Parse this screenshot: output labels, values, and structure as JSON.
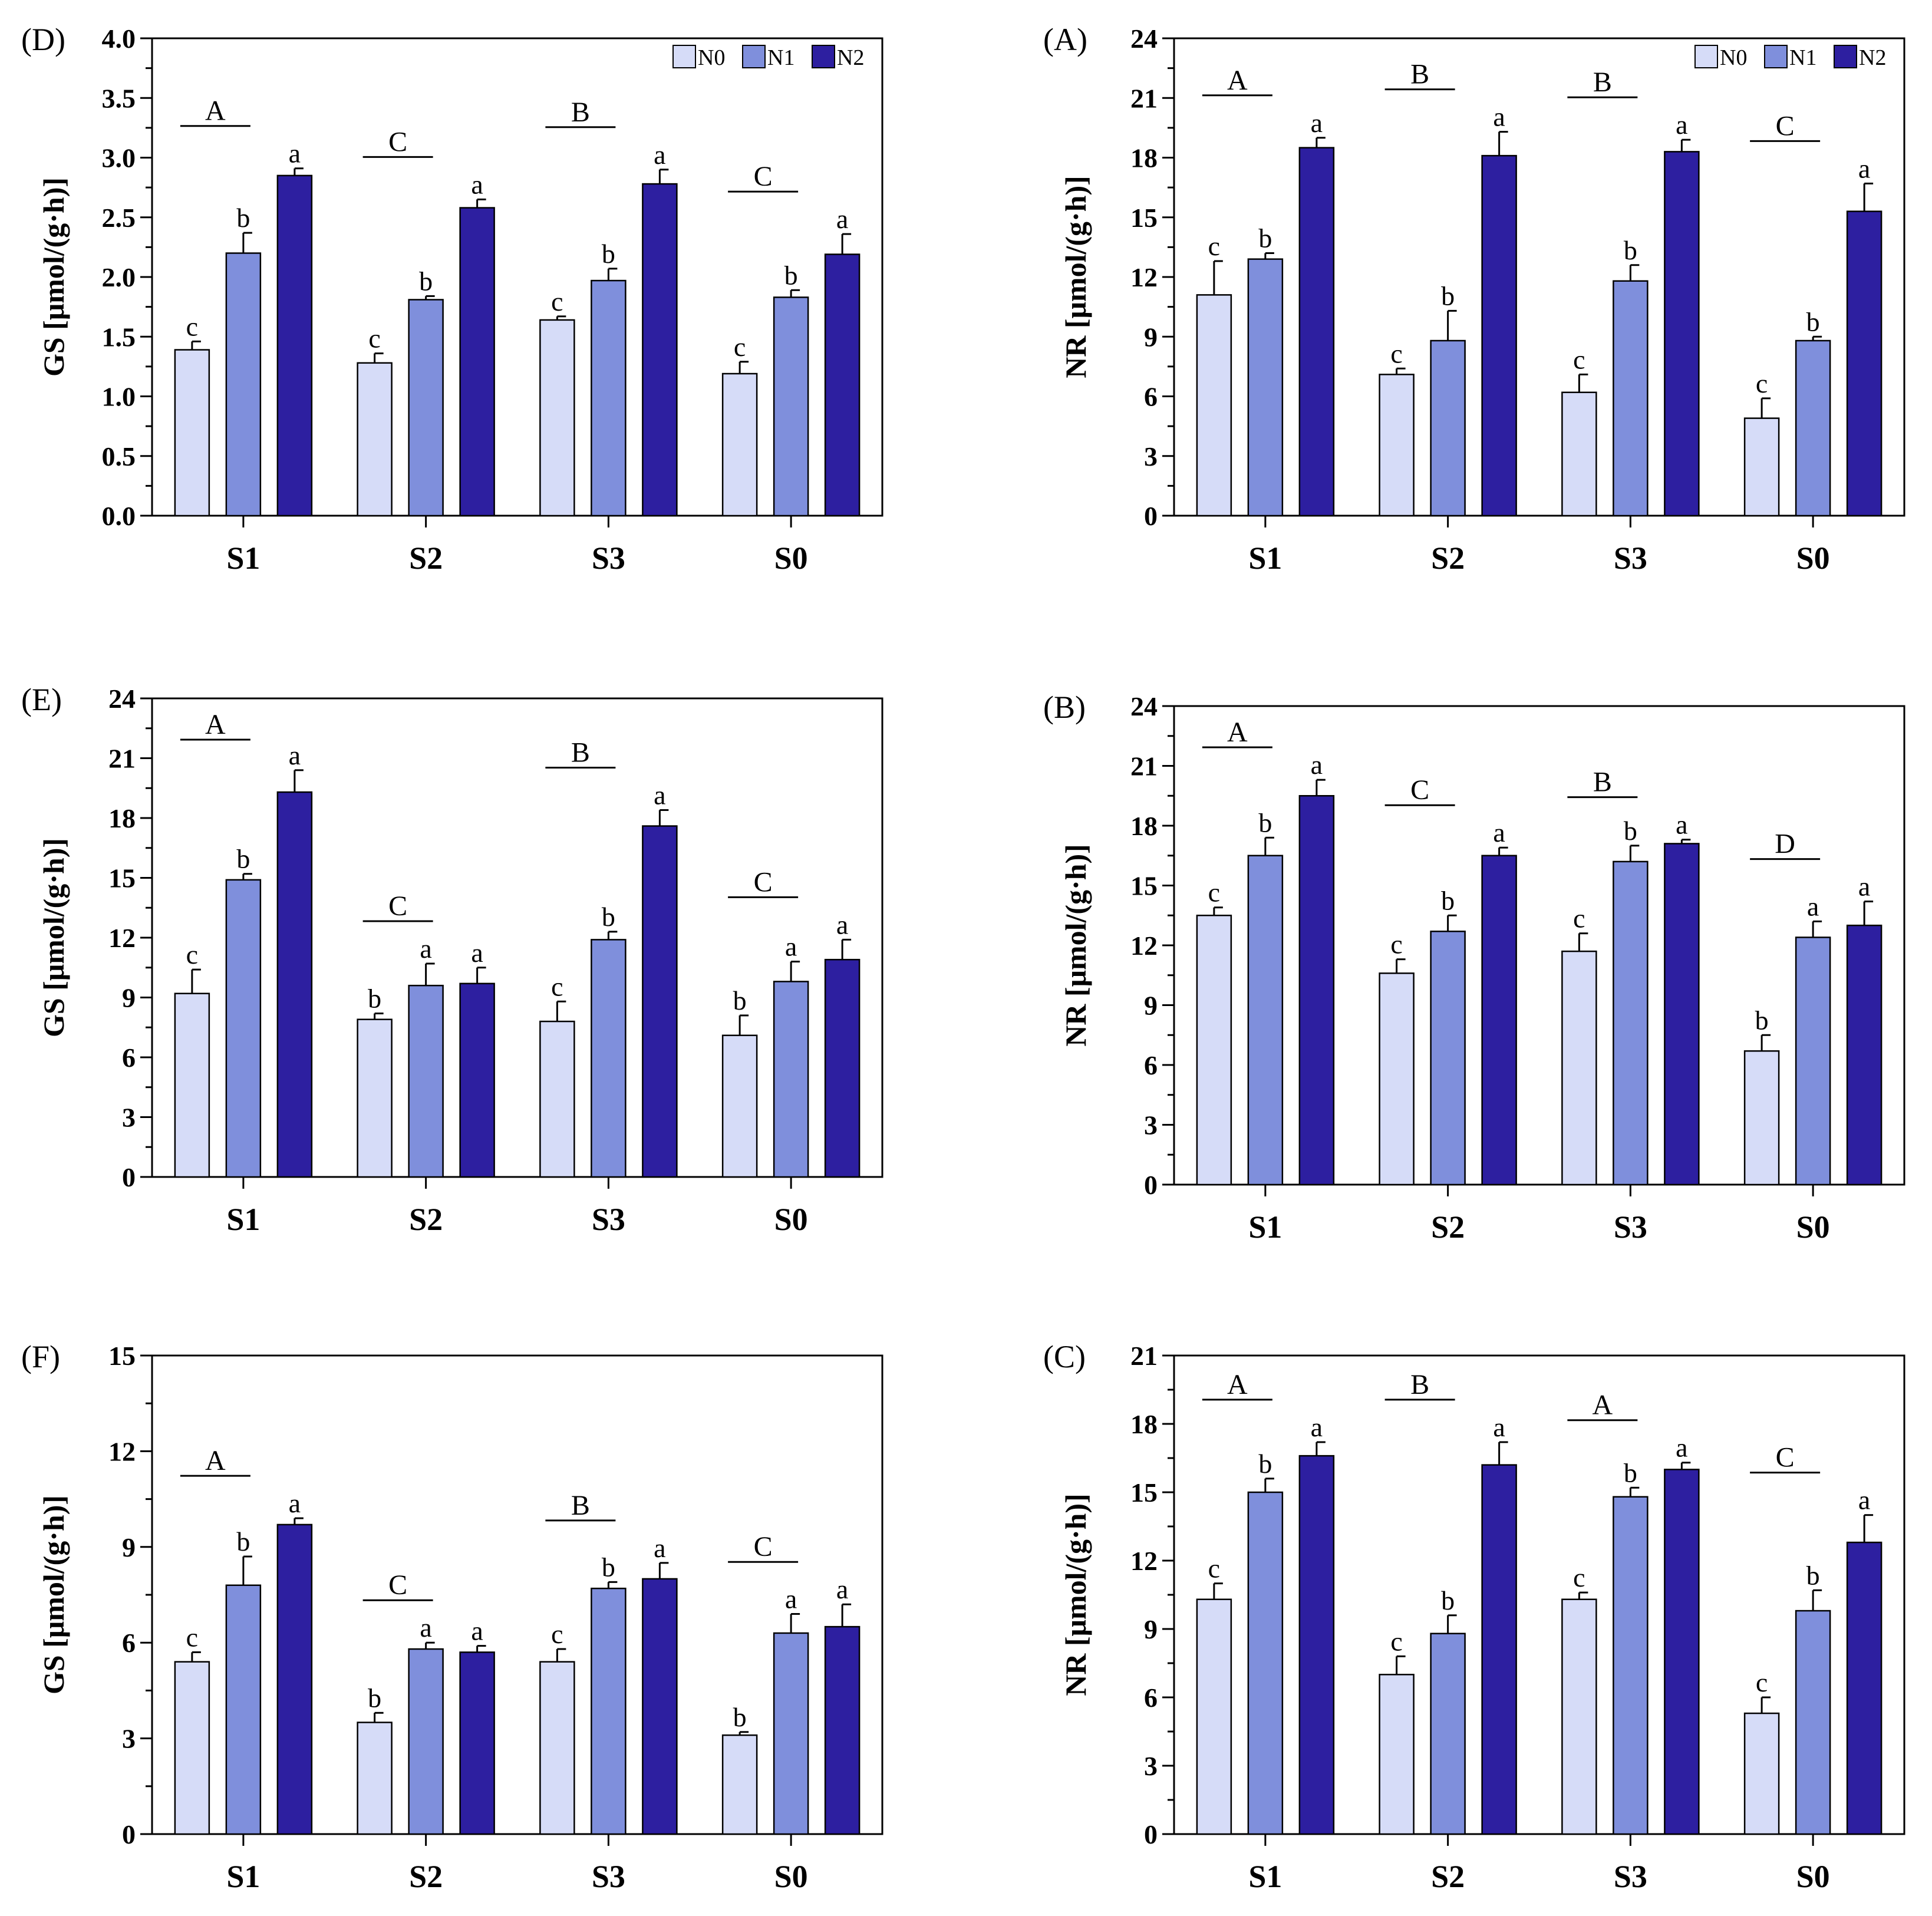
{
  "legend": {
    "entries": [
      "N0",
      "N1",
      "N2"
    ],
    "colors": [
      "#d6dcf8",
      "#7f8fdc",
      "#2d1fa0"
    ]
  },
  "chart_data": [
    {
      "panel": "(D)",
      "type": "bar",
      "ylabel": "GS [μmol/(g·h)]",
      "ylim": [
        0,
        4.0
      ],
      "yticks": [
        "0.0",
        "0.5",
        "1.0",
        "1.5",
        "2.0",
        "2.5",
        "3.0",
        "3.5",
        "4.0"
      ],
      "categories": [
        "S1",
        "S2",
        "S3",
        "S0"
      ],
      "legend": "top-right",
      "series": [
        {
          "name": "N0",
          "values": [
            1.39,
            1.28,
            1.64,
            1.19
          ],
          "errors": [
            0.07,
            0.08,
            0.03,
            0.1
          ],
          "letters": [
            "c",
            "c",
            "c",
            "c"
          ]
        },
        {
          "name": "N1",
          "values": [
            2.2,
            1.81,
            1.97,
            1.83
          ],
          "errors": [
            0.17,
            0.03,
            0.1,
            0.06
          ],
          "letters": [
            "b",
            "b",
            "b",
            "b"
          ]
        },
        {
          "name": "N2",
          "values": [
            2.85,
            2.58,
            2.78,
            2.19
          ],
          "errors": [
            0.06,
            0.07,
            0.12,
            0.17
          ],
          "letters": [
            "a",
            "a",
            "a",
            "a"
          ]
        }
      ],
      "group_letters": [
        "A",
        "C",
        "B",
        "C"
      ]
    },
    {
      "panel": "(A)",
      "type": "bar",
      "ylabel": "NR [μmol/(g·h)]",
      "ylim": [
        0,
        24
      ],
      "yticks": [
        "0",
        "3",
        "6",
        "9",
        "12",
        "15",
        "18",
        "21",
        "24"
      ],
      "categories": [
        "S1",
        "S2",
        "S3",
        "S0"
      ],
      "legend": "top-right",
      "series": [
        {
          "name": "N0",
          "values": [
            11.1,
            7.1,
            6.2,
            4.9
          ],
          "errors": [
            1.7,
            0.3,
            0.9,
            1.0
          ],
          "letters": [
            "c",
            "c",
            "c",
            "c"
          ]
        },
        {
          "name": "N1",
          "values": [
            12.9,
            8.8,
            11.8,
            8.8
          ],
          "errors": [
            0.3,
            1.5,
            0.8,
            0.2
          ],
          "letters": [
            "b",
            "b",
            "b",
            "b"
          ]
        },
        {
          "name": "N2",
          "values": [
            18.5,
            18.1,
            18.3,
            15.3
          ],
          "errors": [
            0.5,
            1.2,
            0.6,
            1.4
          ],
          "letters": [
            "a",
            "a",
            "a",
            "a"
          ]
        }
      ],
      "group_letters": [
        "A",
        "B",
        "B",
        "C"
      ]
    },
    {
      "panel": "(E)",
      "type": "bar",
      "ylabel": "GS [μmol/(g·h)]",
      "ylim": [
        0,
        24
      ],
      "yticks": [
        "0",
        "3",
        "6",
        "9",
        "12",
        "15",
        "18",
        "21",
        "24"
      ],
      "categories": [
        "S1",
        "S2",
        "S3",
        "S0"
      ],
      "series": [
        {
          "name": "N0",
          "values": [
            9.2,
            7.9,
            7.8,
            7.1
          ],
          "errors": [
            1.2,
            0.3,
            1.0,
            1.0
          ],
          "letters": [
            "c",
            "b",
            "c",
            "b"
          ]
        },
        {
          "name": "N1",
          "values": [
            14.9,
            9.6,
            11.9,
            9.8
          ],
          "errors": [
            0.3,
            1.1,
            0.4,
            1.0
          ],
          "letters": [
            "b",
            "a",
            "b",
            "a"
          ]
        },
        {
          "name": "N2",
          "values": [
            19.3,
            9.7,
            17.6,
            10.9
          ],
          "errors": [
            1.1,
            0.8,
            0.8,
            1.0
          ],
          "letters": [
            "a",
            "a",
            "a",
            "a"
          ]
        }
      ],
      "group_letters": [
        "A",
        "C",
        "B",
        "C"
      ]
    },
    {
      "panel": "(B)",
      "type": "bar",
      "ylabel": "NR [μmol/(g·h)]",
      "ylim": [
        0,
        24
      ],
      "yticks": [
        "0",
        "3",
        "6",
        "9",
        "12",
        "15",
        "18",
        "21",
        "24"
      ],
      "categories": [
        "S1",
        "S2",
        "S3",
        "S0"
      ],
      "series": [
        {
          "name": "N0",
          "values": [
            13.5,
            10.6,
            11.7,
            6.7
          ],
          "errors": [
            0.4,
            0.7,
            0.9,
            0.8
          ],
          "letters": [
            "c",
            "c",
            "c",
            "b"
          ]
        },
        {
          "name": "N1",
          "values": [
            16.5,
            12.7,
            16.2,
            12.4
          ],
          "errors": [
            0.9,
            0.8,
            0.8,
            0.8
          ],
          "letters": [
            "b",
            "b",
            "b",
            "a"
          ]
        },
        {
          "name": "N2",
          "values": [
            19.5,
            16.5,
            17.1,
            13.0
          ],
          "errors": [
            0.8,
            0.4,
            0.2,
            1.2
          ],
          "letters": [
            "a",
            "a",
            "a",
            "a"
          ]
        }
      ],
      "group_letters": [
        "A",
        "C",
        "B",
        "D"
      ]
    },
    {
      "panel": "(F)",
      "type": "bar",
      "ylabel": "GS [μmol/(g·h)]",
      "ylim": [
        0,
        15
      ],
      "yticks": [
        "0",
        "3",
        "6",
        "9",
        "12",
        "15"
      ],
      "categories": [
        "S1",
        "S2",
        "S3",
        "S0"
      ],
      "series": [
        {
          "name": "N0",
          "values": [
            5.4,
            3.5,
            5.4,
            3.1
          ],
          "errors": [
            0.3,
            0.3,
            0.4,
            0.1
          ],
          "letters": [
            "c",
            "b",
            "c",
            "b"
          ]
        },
        {
          "name": "N1",
          "values": [
            7.8,
            5.8,
            7.7,
            6.3
          ],
          "errors": [
            0.9,
            0.2,
            0.2,
            0.6
          ],
          "letters": [
            "b",
            "a",
            "b",
            "a"
          ]
        },
        {
          "name": "N2",
          "values": [
            9.7,
            5.7,
            8.0,
            6.5
          ],
          "errors": [
            0.2,
            0.2,
            0.5,
            0.7
          ],
          "letters": [
            "a",
            "a",
            "a",
            "a"
          ]
        }
      ],
      "group_letters": [
        "A",
        "C",
        "B",
        "C"
      ]
    },
    {
      "panel": "(C)",
      "type": "bar",
      "ylabel": "NR [μmol/(g·h)]",
      "ylim": [
        0,
        21
      ],
      "yticks": [
        "0",
        "3",
        "6",
        "9",
        "12",
        "15",
        "18",
        "21"
      ],
      "categories": [
        "S1",
        "S2",
        "S3",
        "S0"
      ],
      "series": [
        {
          "name": "N0",
          "values": [
            10.3,
            7.0,
            10.3,
            5.3
          ],
          "errors": [
            0.7,
            0.8,
            0.3,
            0.7
          ],
          "letters": [
            "c",
            "c",
            "c",
            "c"
          ]
        },
        {
          "name": "N1",
          "values": [
            15.0,
            8.8,
            14.8,
            9.8
          ],
          "errors": [
            0.6,
            0.8,
            0.4,
            0.9
          ],
          "letters": [
            "b",
            "b",
            "b",
            "b"
          ]
        },
        {
          "name": "N2",
          "values": [
            16.6,
            16.2,
            16.0,
            12.8
          ],
          "errors": [
            0.6,
            1.0,
            0.3,
            1.2
          ],
          "letters": [
            "a",
            "a",
            "a",
            "a"
          ]
        }
      ],
      "group_letters": [
        "A",
        "B",
        "A",
        "C"
      ]
    }
  ]
}
